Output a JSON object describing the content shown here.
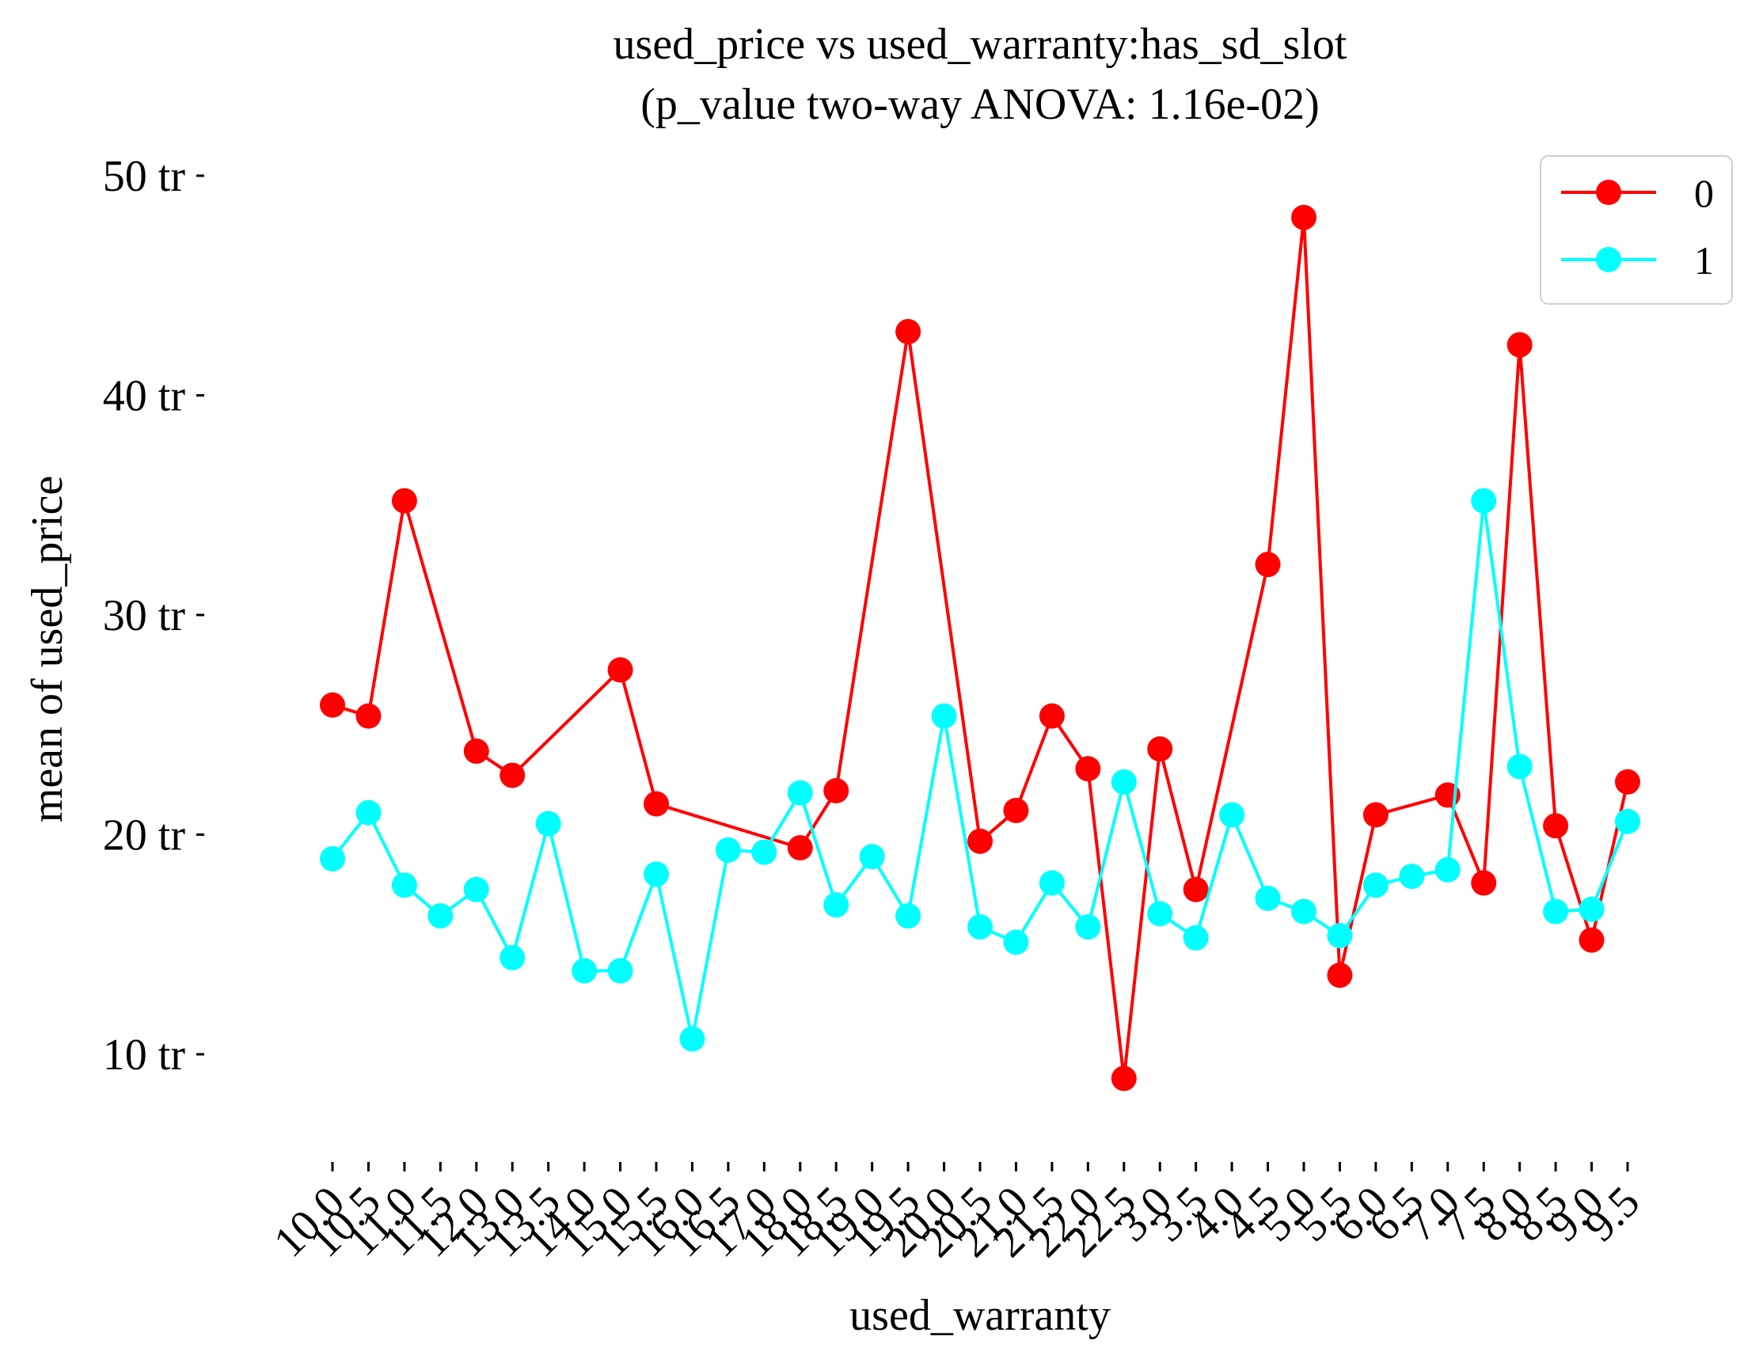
{
  "chart_data": {
    "type": "line",
    "title": "used_price vs used_warranty:has_sd_slot",
    "subtitle": "(p_value two-way ANOVA: 1.16e-02)",
    "xlabel": "used_warranty",
    "ylabel": "mean of used_price",
    "x_tick_labels": [
      "10.0",
      "10.5",
      "11.0",
      "11.5",
      "12.0",
      "13.0",
      "13.5",
      "14.0",
      "15.0",
      "15.5",
      "16.0",
      "16.5",
      "17.0",
      "18.0",
      "18.5",
      "19.0",
      "19.5",
      "20.0",
      "20.5",
      "21.0",
      "21.5",
      "22.0",
      "22.5",
      "3.0",
      "3.5",
      "4.0",
      "4.5",
      "5.0",
      "5.5",
      "6.0",
      "6.5",
      "7.0",
      "7.5",
      "8.0",
      "8.5",
      "9.0",
      "9.5"
    ],
    "y_ticks": [
      10,
      20,
      30,
      40,
      50
    ],
    "y_tick_labels": [
      "10 tr",
      "20 tr",
      "30 tr",
      "40 tr",
      "50 tr"
    ],
    "ylim": [
      5,
      51.5
    ],
    "grid": false,
    "legend_position": "top-right",
    "series": [
      {
        "name": "0",
        "color": "#ff0000",
        "values": [
          25.9,
          25.4,
          35.2,
          null,
          23.8,
          22.7,
          null,
          null,
          27.5,
          21.4,
          null,
          null,
          null,
          19.4,
          22.0,
          null,
          42.9,
          null,
          19.7,
          21.1,
          25.4,
          23.0,
          8.9,
          23.9,
          17.5,
          null,
          32.3,
          48.1,
          13.6,
          20.9,
          null,
          21.8,
          17.8,
          42.3,
          20.4,
          15.2,
          22.4
        ]
      },
      {
        "name": "1",
        "color": "#00ffff",
        "values": [
          18.9,
          21.0,
          17.7,
          16.3,
          17.5,
          14.4,
          20.5,
          13.8,
          13.8,
          18.2,
          10.7,
          19.3,
          19.2,
          21.9,
          16.8,
          19.0,
          16.3,
          25.4,
          15.8,
          15.1,
          17.8,
          15.8,
          22.4,
          16.4,
          15.3,
          20.9,
          17.1,
          16.5,
          15.4,
          17.7,
          18.1,
          18.4,
          35.2,
          23.1,
          16.5,
          16.6,
          20.6
        ]
      }
    ]
  }
}
